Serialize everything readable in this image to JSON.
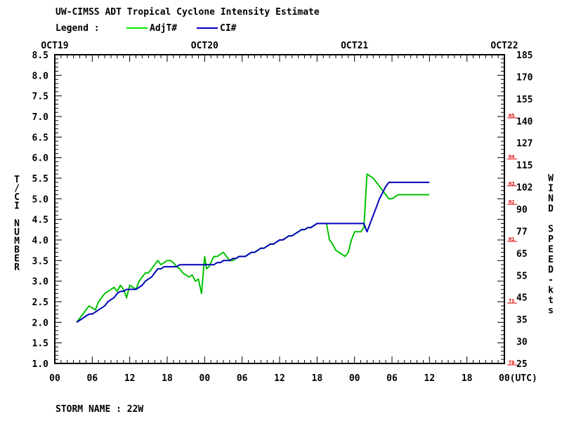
{
  "title": "UW-CIMSS ADT Tropical Cyclone Intensity Estimate",
  "legend": {
    "label": "Legend :",
    "items": [
      {
        "name": "AdjT#",
        "color": "#00ee00"
      },
      {
        "name": "CI#",
        "color": "#0000bb"
      }
    ]
  },
  "storm_label": "STORM NAME : 22W",
  "chart_data": {
    "type": "line",
    "x_unit": "hours since OCT19 00UTC",
    "xlim": [
      0,
      72
    ],
    "x_ticks": [
      0,
      6,
      12,
      18,
      24,
      30,
      36,
      42,
      48,
      54,
      60,
      66,
      72
    ],
    "x_tick_labels": [
      "00",
      "06",
      "12",
      "18",
      "00",
      "06",
      "12",
      "18",
      "00",
      "06",
      "12",
      "18",
      "00(UTC)"
    ],
    "date_labels": [
      {
        "x": 0,
        "label": "OCT19"
      },
      {
        "x": 24,
        "label": "OCT20"
      },
      {
        "x": 48,
        "label": "OCT21"
      },
      {
        "x": 72,
        "label": "OCT22"
      }
    ],
    "ylim": [
      1.0,
      8.5
    ],
    "y_ticks": [
      "1.0",
      "1.5",
      "2.0",
      "2.5",
      "3.0",
      "3.5",
      "4.0",
      "4.5",
      "5.0",
      "5.5",
      "6.0",
      "6.5",
      "7.0",
      "7.5",
      "8.0",
      "8.5"
    ],
    "ylabel": "T/CI NUMBER",
    "y2label": "WIND SPEED-kts",
    "y2_ticks": [
      "25",
      "30",
      "35",
      "45",
      "55",
      "65",
      "77",
      "90",
      "102",
      "115",
      "127",
      "140",
      "155",
      "170",
      "185"
    ],
    "categories_right": [
      {
        "label": "TD",
        "t": 1.0
      },
      {
        "label": "TS",
        "t": 2.5
      },
      {
        "label": "H1",
        "t": 4.0
      },
      {
        "label": "H2",
        "t": 4.9
      },
      {
        "label": "H3",
        "t": 5.35
      },
      {
        "label": "H4",
        "t": 6.0
      },
      {
        "label": "H5",
        "t": 7.0
      }
    ],
    "series": [
      {
        "name": "AdjT#",
        "color": "#00ee00",
        "x": [
          3.5,
          4,
          4.5,
          5,
          5.5,
          6,
          6.5,
          7,
          7.5,
          8,
          8.5,
          9,
          9.5,
          10,
          10.5,
          11,
          11.5,
          12,
          12.5,
          13,
          13.5,
          14,
          14.5,
          15,
          15.5,
          16,
          16.5,
          17,
          17.5,
          18,
          18.5,
          19,
          19.5,
          20,
          20.5,
          21,
          21.5,
          22,
          22.5,
          23,
          23.5,
          24,
          24.3,
          24.7,
          25,
          25.5,
          26,
          26.5,
          27,
          27.5,
          28,
          28.5,
          29,
          29.5,
          30,
          30.5,
          31,
          31.5,
          32,
          32.5,
          33,
          33.5,
          34,
          34.5,
          35,
          35.5,
          36,
          36.5,
          37,
          37.5,
          38,
          38.5,
          39,
          39.5,
          40,
          40.5,
          41,
          41.5,
          42,
          42.5,
          43,
          43.5,
          44,
          44.5,
          45,
          45.5,
          46,
          46.5,
          47,
          47.5,
          48,
          48.5,
          49,
          49.5,
          50,
          50.5,
          51,
          51.5,
          52,
          52.5,
          53,
          53.5,
          54,
          54.5,
          55,
          55.5,
          56,
          56.5,
          57,
          57.5,
          58,
          58.5,
          59,
          59.5,
          60
        ],
        "values": [
          2.0,
          2.1,
          2.2,
          2.3,
          2.4,
          2.35,
          2.3,
          2.5,
          2.6,
          2.7,
          2.75,
          2.8,
          2.85,
          2.75,
          2.9,
          2.8,
          2.6,
          2.9,
          2.85,
          2.8,
          3.0,
          3.1,
          3.2,
          3.2,
          3.3,
          3.4,
          3.5,
          3.4,
          3.45,
          3.5,
          3.5,
          3.45,
          3.35,
          3.3,
          3.2,
          3.15,
          3.1,
          3.15,
          3.0,
          3.05,
          2.7,
          3.6,
          3.3,
          3.35,
          3.45,
          3.6,
          3.6,
          3.65,
          3.7,
          3.6,
          3.5,
          3.5,
          3.55,
          3.6,
          3.6,
          3.6,
          3.65,
          3.7,
          3.7,
          3.75,
          3.8,
          3.8,
          3.85,
          3.9,
          3.9,
          3.95,
          4.0,
          4.0,
          4.05,
          4.1,
          4.1,
          4.15,
          4.2,
          4.25,
          4.25,
          4.3,
          4.3,
          4.35,
          4.4,
          4.4,
          4.4,
          4.4,
          4.0,
          3.9,
          3.75,
          3.7,
          3.65,
          3.6,
          3.7,
          4.0,
          4.2,
          4.2,
          4.2,
          4.3,
          5.6,
          5.55,
          5.5,
          5.4,
          5.3,
          5.2,
          5.1,
          5.0,
          5.0,
          5.05,
          5.1,
          5.1,
          5.1,
          5.1,
          5.1,
          5.1,
          5.1,
          5.1,
          5.1,
          5.1,
          5.1
        ]
      },
      {
        "name": "CI#",
        "color": "#0000bb",
        "x": [
          3.5,
          4,
          4.5,
          5,
          5.5,
          6,
          6.5,
          7,
          7.5,
          8,
          8.5,
          9,
          9.5,
          10,
          10.5,
          11,
          11.5,
          12,
          12.5,
          13,
          13.5,
          14,
          14.5,
          15,
          15.5,
          16,
          16.5,
          17,
          17.5,
          18,
          18.5,
          19,
          19.5,
          20,
          20.5,
          21,
          21.5,
          22,
          22.5,
          23,
          23.5,
          24,
          24.3,
          24.7,
          25,
          25.5,
          26,
          26.5,
          27,
          27.5,
          28,
          28.5,
          29,
          29.5,
          30,
          30.5,
          31,
          31.5,
          32,
          32.5,
          33,
          33.5,
          34,
          34.5,
          35,
          35.5,
          36,
          36.5,
          37,
          37.5,
          38,
          38.5,
          39,
          39.5,
          40,
          40.5,
          41,
          41.5,
          42,
          42.5,
          43,
          43.5,
          44,
          44.5,
          45,
          45.5,
          46,
          46.5,
          47,
          47.5,
          48,
          48.5,
          49,
          49.5,
          50,
          50.5,
          51,
          51.5,
          52,
          52.5,
          53,
          53.5,
          54,
          54.5,
          55,
          55.5,
          56,
          56.5,
          57,
          57.5,
          58,
          58.5,
          59,
          59.5,
          60
        ],
        "values": [
          2.0,
          2.05,
          2.1,
          2.15,
          2.2,
          2.2,
          2.25,
          2.3,
          2.35,
          2.4,
          2.5,
          2.55,
          2.6,
          2.7,
          2.75,
          2.75,
          2.8,
          2.8,
          2.8,
          2.8,
          2.85,
          2.9,
          3.0,
          3.05,
          3.1,
          3.2,
          3.3,
          3.3,
          3.35,
          3.35,
          3.35,
          3.35,
          3.35,
          3.4,
          3.4,
          3.4,
          3.4,
          3.4,
          3.4,
          3.4,
          3.4,
          3.4,
          3.4,
          3.4,
          3.4,
          3.4,
          3.45,
          3.45,
          3.5,
          3.5,
          3.5,
          3.55,
          3.55,
          3.6,
          3.6,
          3.6,
          3.65,
          3.7,
          3.7,
          3.75,
          3.8,
          3.8,
          3.85,
          3.9,
          3.9,
          3.95,
          4.0,
          4.0,
          4.05,
          4.1,
          4.1,
          4.15,
          4.2,
          4.25,
          4.25,
          4.3,
          4.3,
          4.35,
          4.4,
          4.4,
          4.4,
          4.4,
          4.4,
          4.4,
          4.4,
          4.4,
          4.4,
          4.4,
          4.4,
          4.4,
          4.4,
          4.4,
          4.4,
          4.4,
          4.2,
          4.4,
          4.6,
          4.8,
          5.0,
          5.15,
          5.3,
          5.4,
          5.4,
          5.4,
          5.4,
          5.4,
          5.4,
          5.4,
          5.4,
          5.4,
          5.4,
          5.4,
          5.4,
          5.4,
          5.4
        ]
      }
    ]
  }
}
